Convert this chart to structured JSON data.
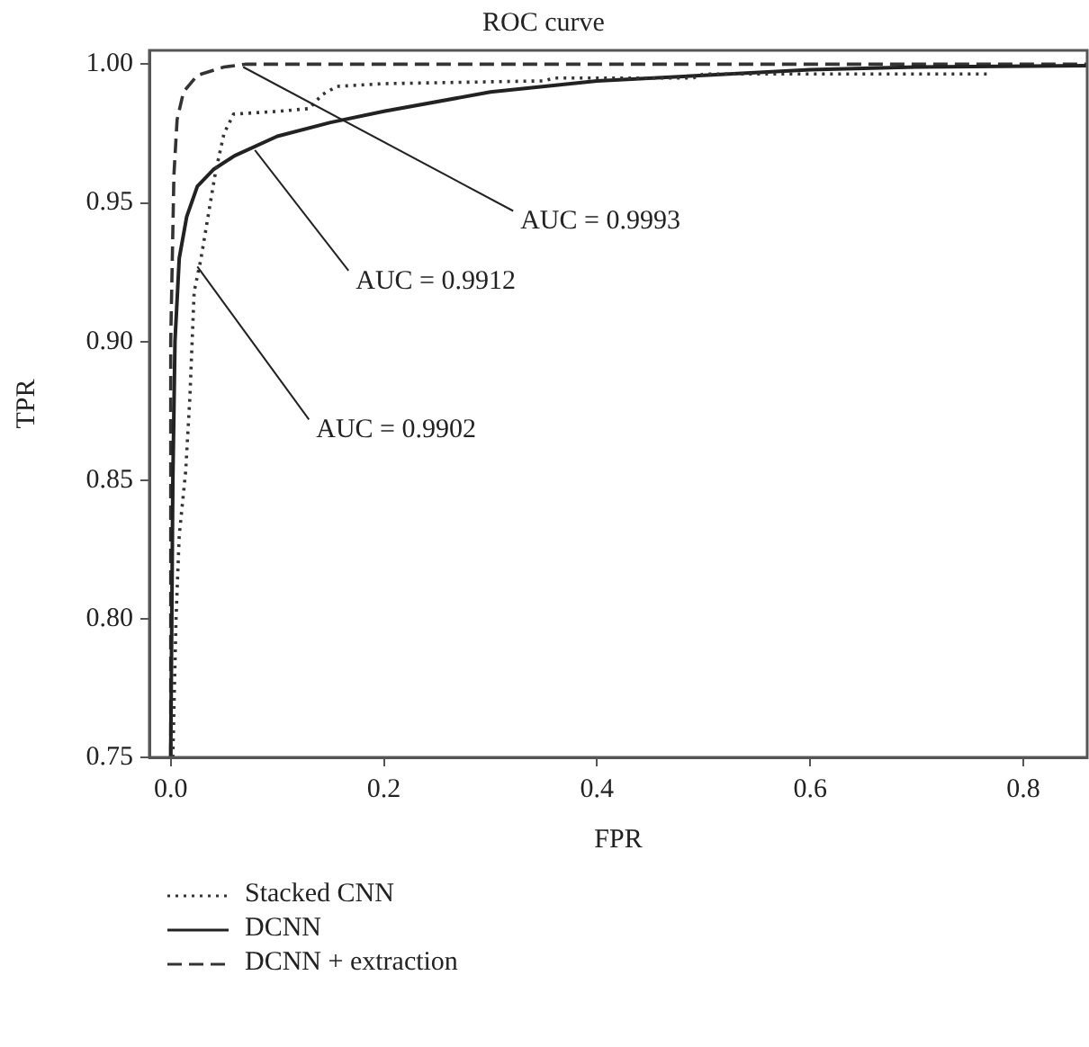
{
  "chart_data": {
    "type": "line",
    "title": "ROC curve",
    "xlabel": "FPR",
    "ylabel": "TPR",
    "xlim": [
      -0.02,
      0.86
    ],
    "ylim": [
      0.75,
      1.005
    ],
    "xticks": [
      {
        "value": 0,
        "label": "0.0"
      },
      {
        "value": 0.2,
        "label": "0.2"
      },
      {
        "value": 0.4,
        "label": "0.4"
      },
      {
        "value": 0.6,
        "label": "0.6"
      },
      {
        "value": 0.8,
        "label": "0.8"
      }
    ],
    "yticks": [
      {
        "value": 0.75,
        "label": "0.75"
      },
      {
        "value": 0.8,
        "label": "0.80"
      },
      {
        "value": 0.85,
        "label": "0.85"
      },
      {
        "value": 0.9,
        "label": "0.90"
      },
      {
        "value": 0.95,
        "label": "0.95"
      },
      {
        "value": 1,
        "label": "1.00"
      }
    ],
    "grid": false,
    "legend": "bottom",
    "marker": "none",
    "series": [
      {
        "name": "Stacked CNN",
        "color": "#333333",
        "line_style": "dotted",
        "x": [
          0.002,
          0.005,
          0.008,
          0.014,
          0.018,
          0.022,
          0.028,
          0.035,
          0.042,
          0.05,
          0.059,
          0.1,
          0.13,
          0.142,
          0.156,
          0.2,
          0.35,
          0.36,
          0.49,
          0.5,
          0.77
        ],
        "values": [
          0.75,
          0.8,
          0.83,
          0.853,
          0.88,
          0.918,
          0.929,
          0.945,
          0.961,
          0.975,
          0.982,
          0.983,
          0.984,
          0.989,
          0.992,
          0.993,
          0.994,
          0.995,
          0.995,
          0.9965,
          0.9965
        ]
      },
      {
        "name": "DCNN",
        "color": "#222222",
        "line_style": "solid",
        "x": [
          0,
          0.002,
          0.004,
          0.008,
          0.015,
          0.025,
          0.04,
          0.06,
          0.1,
          0.15,
          0.2,
          0.3,
          0.4,
          0.5,
          0.6,
          0.7,
          0.86
        ],
        "values": [
          0.75,
          0.85,
          0.9,
          0.93,
          0.945,
          0.956,
          0.962,
          0.967,
          0.974,
          0.979,
          0.983,
          0.99,
          0.994,
          0.996,
          0.998,
          0.999,
          0.9995
        ]
      },
      {
        "name": "DCNN + extraction",
        "color": "#333333",
        "line_style": "dashed",
        "x": [
          0,
          0,
          0.003,
          0.006,
          0.012,
          0.025,
          0.05,
          0.07,
          0.86
        ],
        "values": [
          0.75,
          0.9,
          0.96,
          0.98,
          0.99,
          0.996,
          0.999,
          1,
          1
        ]
      }
    ],
    "annotations": [
      {
        "text": "AUC = 0.9993",
        "x": 0.068,
        "y": 0.999
      },
      {
        "text": "AUC = 0.9912",
        "x": 0.079,
        "y": 0.969
      },
      {
        "text": "AUC = 0.9902",
        "x": 0.025,
        "y": 0.927
      }
    ]
  }
}
